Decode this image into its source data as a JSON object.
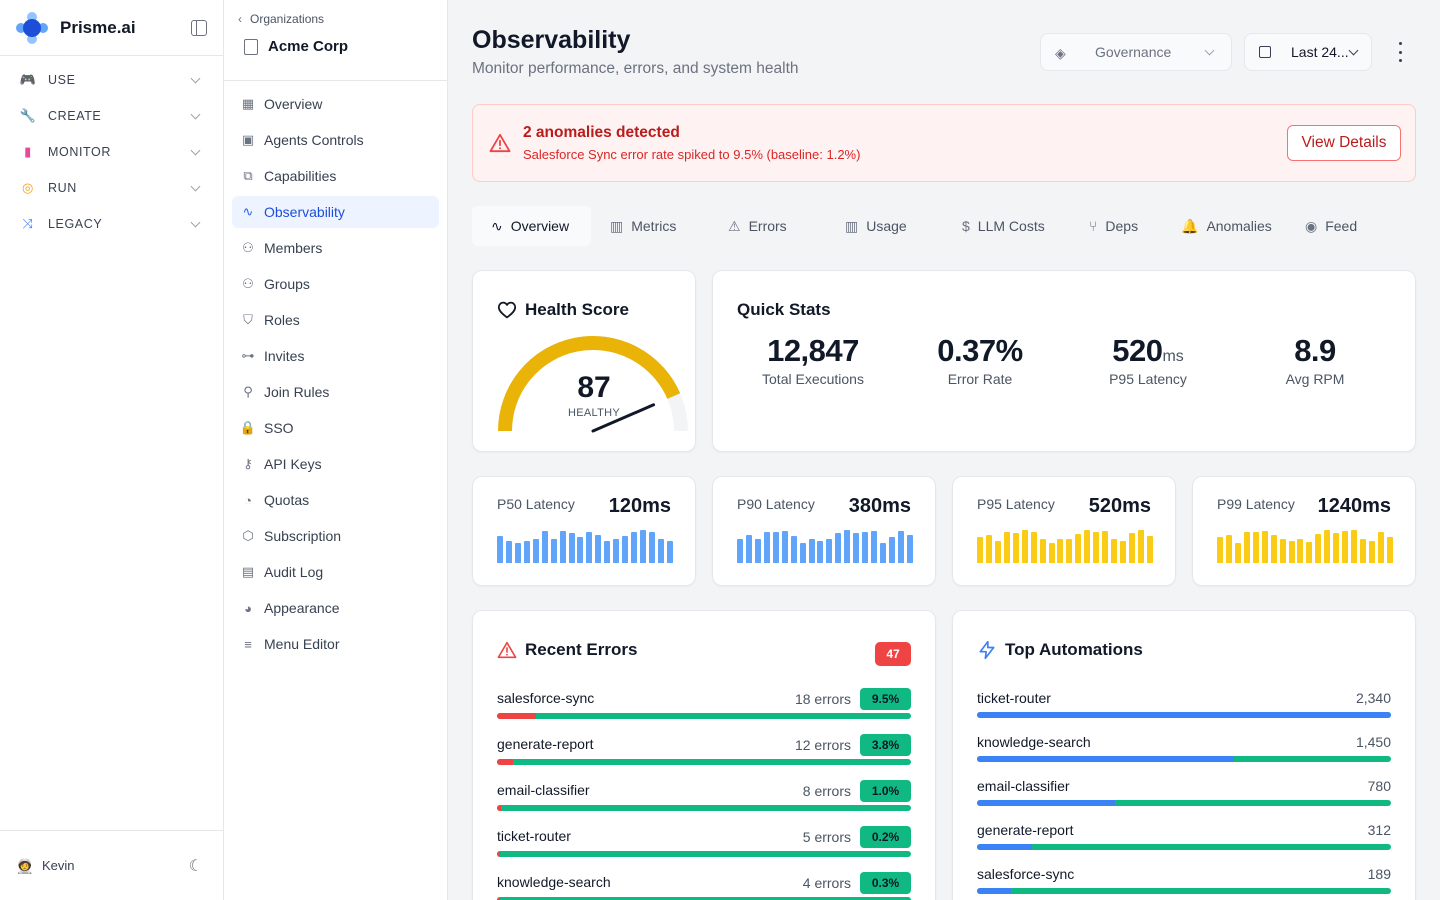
{
  "brand": {
    "name": "Prisme.ai"
  },
  "rail": {
    "items": [
      {
        "label": "USE",
        "icon": "gamepad-icon",
        "color": "#f97316"
      },
      {
        "label": "CREATE",
        "icon": "wrench-icon",
        "color": "#22c55e"
      },
      {
        "label": "MONITOR",
        "icon": "signal-bars-icon",
        "color": "#ec4899"
      },
      {
        "label": "RUN",
        "icon": "fingerprint-icon",
        "color": "#f59e0b"
      },
      {
        "label": "LEGACY",
        "icon": "shuffle-icon",
        "color": "#3b82f6"
      }
    ],
    "user": {
      "name": "Kevin"
    }
  },
  "org": {
    "breadcrumb": "Organizations",
    "name": "Acme Corp",
    "items": [
      {
        "label": "Overview",
        "icon": "grid-icon"
      },
      {
        "label": "Agents Controls",
        "icon": "bot-icon"
      },
      {
        "label": "Capabilities",
        "icon": "blocks-icon"
      },
      {
        "label": "Observability",
        "icon": "activity-icon",
        "active": true
      },
      {
        "label": "Members",
        "icon": "users-icon"
      },
      {
        "label": "Groups",
        "icon": "group-icon"
      },
      {
        "label": "Roles",
        "icon": "shield-icon"
      },
      {
        "label": "Invites",
        "icon": "link-icon"
      },
      {
        "label": "Join Rules",
        "icon": "user-plus-icon"
      },
      {
        "label": "SSO",
        "icon": "lock-icon"
      },
      {
        "label": "API Keys",
        "icon": "key-icon"
      },
      {
        "label": "Quotas",
        "icon": "gauge-icon"
      },
      {
        "label": "Subscription",
        "icon": "package-icon"
      },
      {
        "label": "Audit Log",
        "icon": "scroll-icon"
      },
      {
        "label": "Appearance",
        "icon": "palette-icon"
      },
      {
        "label": "Menu Editor",
        "icon": "menu-icon"
      }
    ]
  },
  "header": {
    "title": "Observability",
    "subtitle": "Monitor performance, errors, and system health",
    "governance": "Governance",
    "date_range": "Last 24..."
  },
  "alert": {
    "title": "2 anomalies detected",
    "message": "Salesforce Sync error rate spiked to 9.5% (baseline: 1.2%)",
    "button": "View Details"
  },
  "tabs": [
    {
      "label": "Overview",
      "icon": "activity-icon",
      "active": true
    },
    {
      "label": "Metrics",
      "icon": "bar-chart-icon"
    },
    {
      "label": "Errors",
      "icon": "warning-icon"
    },
    {
      "label": "Usage",
      "icon": "bar-chart-icon"
    },
    {
      "label": "LLM Costs",
      "icon": "dollar-icon"
    },
    {
      "label": "Deps",
      "icon": "git-branch-icon"
    },
    {
      "label": "Anomalies",
      "icon": "bell-icon"
    },
    {
      "label": "Feed",
      "icon": "radio-icon"
    }
  ],
  "health": {
    "title": "Health Score",
    "score": "87",
    "status": "HEALTHY",
    "fraction": 0.87,
    "color": "#eab308"
  },
  "quick_stats": {
    "title": "Quick Stats",
    "items": [
      {
        "value": "12,847",
        "unit": "",
        "label": "Total Executions"
      },
      {
        "value": "0.37%",
        "unit": "",
        "label": "Error Rate"
      },
      {
        "value": "520",
        "unit": "ms",
        "label": "P95 Latency"
      },
      {
        "value": "8.9",
        "unit": "",
        "label": "Avg RPM"
      }
    ]
  },
  "latency": [
    {
      "label": "P50 Latency",
      "value": "120ms",
      "color": "#60a5fa",
      "bars": [
        0.8,
        0.65,
        0.6,
        0.65,
        0.72,
        0.95,
        0.7,
        0.95,
        0.88,
        0.75,
        0.92,
        0.82,
        0.65,
        0.72,
        0.8,
        0.92,
        0.98,
        0.9,
        0.72,
        0.65
      ]
    },
    {
      "label": "P90 Latency",
      "value": "380ms",
      "color": "#60a5fa",
      "bars": [
        0.7,
        0.82,
        0.7,
        0.92,
        0.92,
        0.95,
        0.78,
        0.6,
        0.72,
        0.65,
        0.7,
        0.88,
        0.98,
        0.88,
        0.92,
        0.95,
        0.6,
        0.75,
        0.95,
        0.82
      ]
    },
    {
      "label": "P95 Latency",
      "value": "520ms",
      "color": "#facc15",
      "bars": [
        0.75,
        0.82,
        0.65,
        0.92,
        0.88,
        0.98,
        0.92,
        0.72,
        0.6,
        0.7,
        0.72,
        0.85,
        0.98,
        0.92,
        0.95,
        0.72,
        0.65,
        0.88,
        0.98,
        0.78
      ]
    },
    {
      "label": "P99 Latency",
      "value": "1240ms",
      "color": "#facc15",
      "bars": [
        0.75,
        0.82,
        0.6,
        0.9,
        0.92,
        0.95,
        0.82,
        0.7,
        0.65,
        0.72,
        0.62,
        0.85,
        0.98,
        0.88,
        0.95,
        0.96,
        0.72,
        0.65,
        0.92,
        0.75
      ]
    }
  ],
  "recent_errors": {
    "title": "Recent Errors",
    "count": "47",
    "rows": [
      {
        "name": "salesforce-sync",
        "errors": "18 errors",
        "rate": "9.5%",
        "fraction": 0.095
      },
      {
        "name": "generate-report",
        "errors": "12 errors",
        "rate": "3.8%",
        "fraction": 0.038
      },
      {
        "name": "email-classifier",
        "errors": "8 errors",
        "rate": "1.0%",
        "fraction": 0.01
      },
      {
        "name": "ticket-router",
        "errors": "5 errors",
        "rate": "0.2%",
        "fraction": 0.002
      },
      {
        "name": "knowledge-search",
        "errors": "4 errors",
        "rate": "0.3%",
        "fraction": 0.003
      }
    ]
  },
  "top_automations": {
    "title": "Top Automations",
    "rows": [
      {
        "name": "ticket-router",
        "count": "2,340",
        "fraction": 1.0
      },
      {
        "name": "knowledge-search",
        "count": "1,450",
        "fraction": 0.62
      },
      {
        "name": "email-classifier",
        "count": "780",
        "fraction": 0.333
      },
      {
        "name": "generate-report",
        "count": "312",
        "fraction": 0.133
      },
      {
        "name": "salesforce-sync",
        "count": "189",
        "fraction": 0.081
      }
    ]
  },
  "colors": {
    "primary": "#3b82f6",
    "success": "#10b981",
    "danger": "#ef4444",
    "warning": "#eab308"
  }
}
